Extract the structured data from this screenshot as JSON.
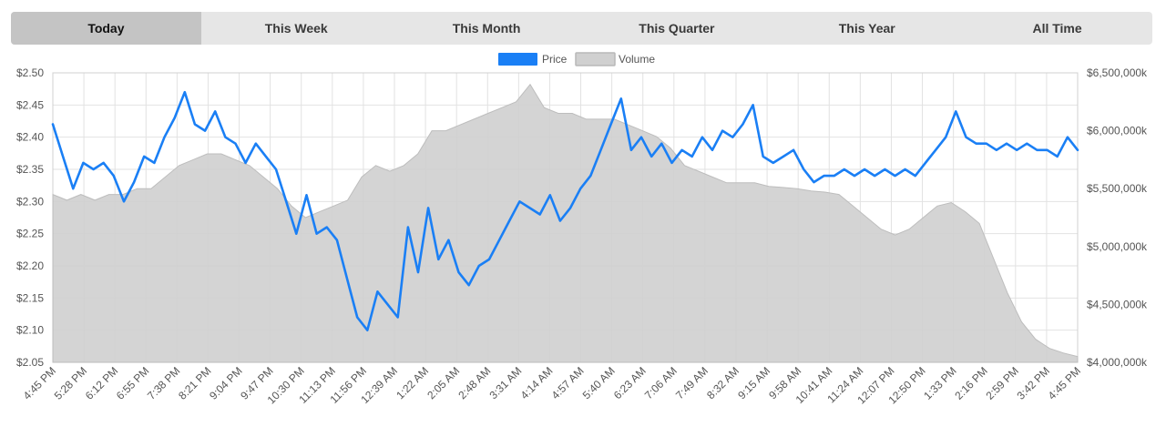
{
  "tabs": [
    {
      "label": "Today",
      "active": true
    },
    {
      "label": "This Week",
      "active": false
    },
    {
      "label": "This Month",
      "active": false
    },
    {
      "label": "This Quarter",
      "active": false
    },
    {
      "label": "This Year",
      "active": false
    },
    {
      "label": "All Time",
      "active": false
    }
  ],
  "colors": {
    "price": "#1a7ff5",
    "volume_fill": "#cfcfcf",
    "volume_stroke": "#bdbdbd",
    "grid": "#e2e2e2"
  },
  "chart_data": {
    "type": "line",
    "grid": true,
    "legend": "top-center",
    "legend_entries": [
      "Price",
      "Volume"
    ],
    "x_tick_labels": [
      "4:45 PM",
      "5:28 PM",
      "6:12 PM",
      "6:55 PM",
      "7:38 PM",
      "8:21 PM",
      "9:04 PM",
      "9:47 PM",
      "10:30 PM",
      "11:13 PM",
      "11:56 PM",
      "12:39 AM",
      "1:22 AM",
      "2:05 AM",
      "2:48 AM",
      "3:31 AM",
      "4:14 AM",
      "4:57 AM",
      "5:40 AM",
      "6:23 AM",
      "7:06 AM",
      "7:49 AM",
      "8:32 AM",
      "9:15 AM",
      "9:58 AM",
      "10:41 AM",
      "11:24 AM",
      "12:07 PM",
      "12:50 PM",
      "1:33 PM",
      "2:16 PM",
      "2:59 PM",
      "3:42 PM",
      "4:45 PM"
    ],
    "y_left_ticks": [
      "$2.50",
      "$2.45",
      "$2.40",
      "$2.35",
      "$2.30",
      "$2.25",
      "$2.20",
      "$2.15",
      "$2.10",
      "$2.05"
    ],
    "y_left_range": [
      2.05,
      2.5
    ],
    "y_right_ticks": [
      "$6,500,000k",
      "$6,000,000k",
      "$5,500,000k",
      "$5,000,000k",
      "$4,500,000k",
      "$4,000,000k"
    ],
    "y_right_range": [
      4000000,
      6500000
    ],
    "series": [
      {
        "name": "Price",
        "axis": "left",
        "values": [
          2.42,
          2.37,
          2.32,
          2.36,
          2.35,
          2.36,
          2.34,
          2.3,
          2.33,
          2.37,
          2.36,
          2.4,
          2.43,
          2.47,
          2.42,
          2.41,
          2.44,
          2.4,
          2.39,
          2.36,
          2.39,
          2.37,
          2.35,
          2.3,
          2.25,
          2.31,
          2.25,
          2.26,
          2.24,
          2.18,
          2.12,
          2.1,
          2.16,
          2.14,
          2.12,
          2.26,
          2.19,
          2.29,
          2.21,
          2.24,
          2.19,
          2.17,
          2.2,
          2.21,
          2.24,
          2.27,
          2.3,
          2.29,
          2.28,
          2.31,
          2.27,
          2.29,
          2.32,
          2.34,
          2.38,
          2.42,
          2.46,
          2.38,
          2.4,
          2.37,
          2.39,
          2.36,
          2.38,
          2.37,
          2.4,
          2.38,
          2.41,
          2.4,
          2.42,
          2.45,
          2.37,
          2.36,
          2.37,
          2.38,
          2.35,
          2.33,
          2.34,
          2.34,
          2.35,
          2.34,
          2.35,
          2.34,
          2.35,
          2.34,
          2.35,
          2.34,
          2.36,
          2.38,
          2.4,
          2.44,
          2.4,
          2.39,
          2.39,
          2.38,
          2.39,
          2.38,
          2.39,
          2.38,
          2.38,
          2.37,
          2.4,
          2.38
        ]
      },
      {
        "name": "Volume",
        "axis": "right",
        "values": [
          5450000,
          5400000,
          5450000,
          5400000,
          5450000,
          5450000,
          5500000,
          5500000,
          5600000,
          5700000,
          5750000,
          5800000,
          5800000,
          5750000,
          5700000,
          5600000,
          5500000,
          5350000,
          5250000,
          5300000,
          5350000,
          5400000,
          5600000,
          5700000,
          5650000,
          5700000,
          5800000,
          6000000,
          6000000,
          6050000,
          6100000,
          6150000,
          6200000,
          6250000,
          6400000,
          6200000,
          6150000,
          6150000,
          6100000,
          6100000,
          6100000,
          6050000,
          6000000,
          5950000,
          5850000,
          5700000,
          5650000,
          5600000,
          5550000,
          5550000,
          5550000,
          5520000,
          5510000,
          5500000,
          5480000,
          5470000,
          5450000,
          5350000,
          5250000,
          5150000,
          5100000,
          5150000,
          5250000,
          5350000,
          5380000,
          5300000,
          5200000,
          4900000,
          4600000,
          4350000,
          4200000,
          4120000,
          4080000,
          4050000
        ]
      }
    ]
  }
}
